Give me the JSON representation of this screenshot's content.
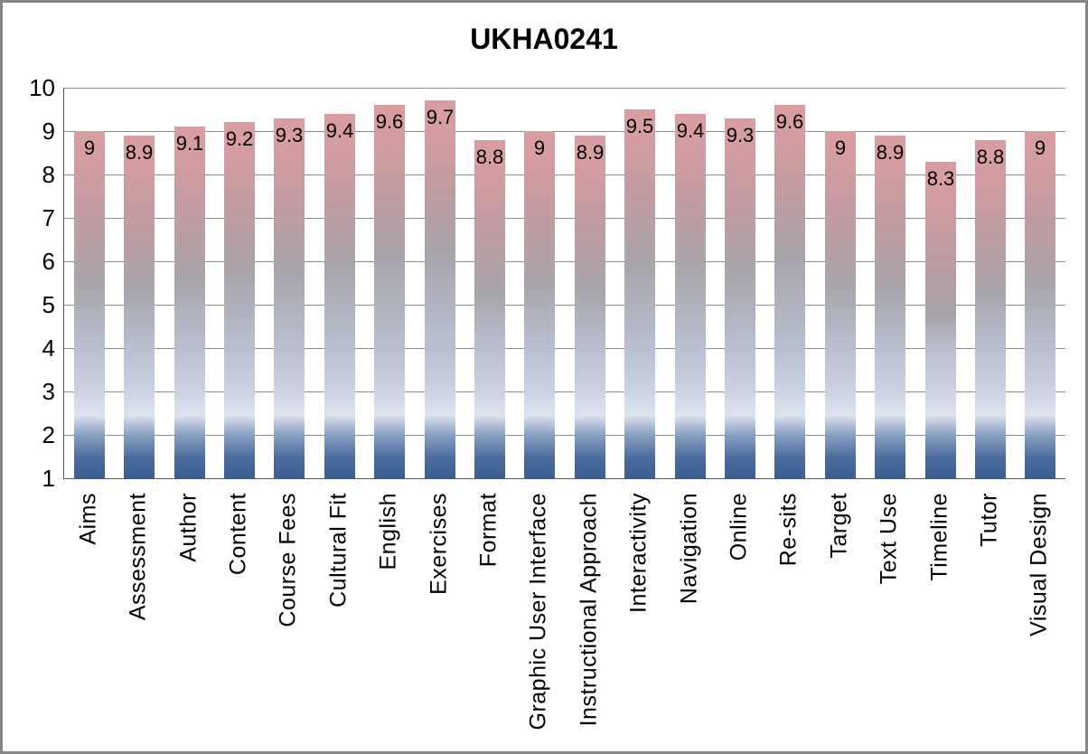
{
  "chart_data": {
    "type": "bar",
    "title": "UKHA0241",
    "categories": [
      "Aims",
      "Assessment",
      "Author",
      "Content",
      "Course Fees",
      "Cultural Fit",
      "English",
      "Exercises",
      "Format",
      "Graphic User Interface",
      "Instructional Approach",
      "Interactivity",
      "Navigation",
      "Online",
      "Re-sits",
      "Target",
      "Text Use",
      "Timeline",
      "Tutor",
      "Visual Design"
    ],
    "values": [
      9,
      8.9,
      9.1,
      9.2,
      9.3,
      9.4,
      9.6,
      9.7,
      8.8,
      9,
      8.9,
      9.5,
      9.4,
      9.3,
      9.6,
      9,
      8.9,
      8.3,
      8.8,
      9
    ],
    "value_labels": [
      "9",
      "8.9",
      "9.1",
      "9.2",
      "9.3",
      "9.4",
      "9.6",
      "9.7",
      "8.8",
      "9",
      "8.9",
      "9.5",
      "9.4",
      "9.3",
      "9.6",
      "9",
      "8.9",
      "8.3",
      "8.8",
      "9"
    ],
    "xlabel": "",
    "ylabel": "",
    "ylim": [
      1,
      10
    ],
    "yticks": [
      "1",
      "2",
      "3",
      "4",
      "5",
      "6",
      "7",
      "8",
      "9",
      "10"
    ],
    "grid": "horizontal",
    "legend": "none",
    "data_label_position": "inside-end",
    "colors": {
      "bar_top": "#d89da1",
      "bar_mid_gray": "#a8a5ab",
      "bar_light_blue": "#dce4ef",
      "bar_bottom_blue": "#3a5e92",
      "gridline": "#8b8b8b",
      "axis_line": "#595959",
      "frame_border": "#868686",
      "text": "#000000",
      "background": "#ffffff"
    }
  }
}
